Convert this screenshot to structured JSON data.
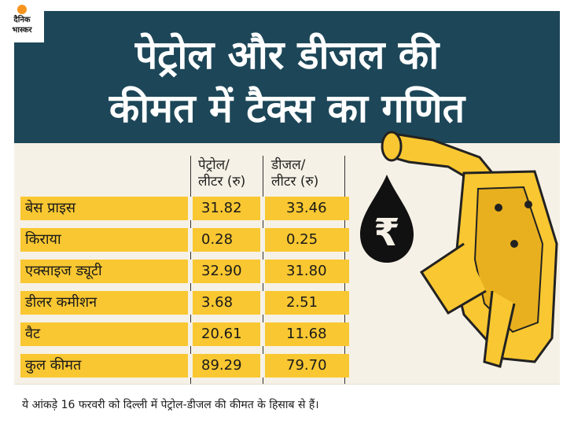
{
  "logo": {
    "line1": "दैनिक",
    "line2": "भास्कर"
  },
  "title": {
    "line1": "पेट्रोल और डीजल की",
    "line2": "कीमत में टैक्स का गणित"
  },
  "table": {
    "headers": {
      "petrol": "पेट्रोल/\nलीटर (रु)",
      "diesel": "डीजल/\nलीटर (रु)"
    },
    "rows": [
      {
        "label": "बेस प्राइस",
        "petrol": "31.82",
        "diesel": "33.46"
      },
      {
        "label": "किराया",
        "petrol": "0.28",
        "diesel": "0.25"
      },
      {
        "label": "एक्साइज ड्यूटी",
        "petrol": "32.90",
        "diesel": "31.80"
      },
      {
        "label": "डीलर कमीशन",
        "petrol": "3.68",
        "diesel": "2.51"
      },
      {
        "label": "वैट",
        "petrol": "20.61",
        "diesel": "11.68"
      },
      {
        "label": "कुल कीमत",
        "petrol": "89.29",
        "diesel": "79.70"
      }
    ]
  },
  "illustration": {
    "drop_symbol": "₹",
    "icons": [
      "rupee-drop-icon",
      "fuel-nozzle-icon"
    ]
  },
  "footnote": "ये आंकड़े 16 फरवरी को दिल्ली में पेट्रोल-डीजल की कीमत के हिसाब से हैं।",
  "colors": {
    "header": "#1d4758",
    "row": "#f9c731",
    "panel": "#f6f1e6",
    "logo_sun": "#f7941d"
  }
}
